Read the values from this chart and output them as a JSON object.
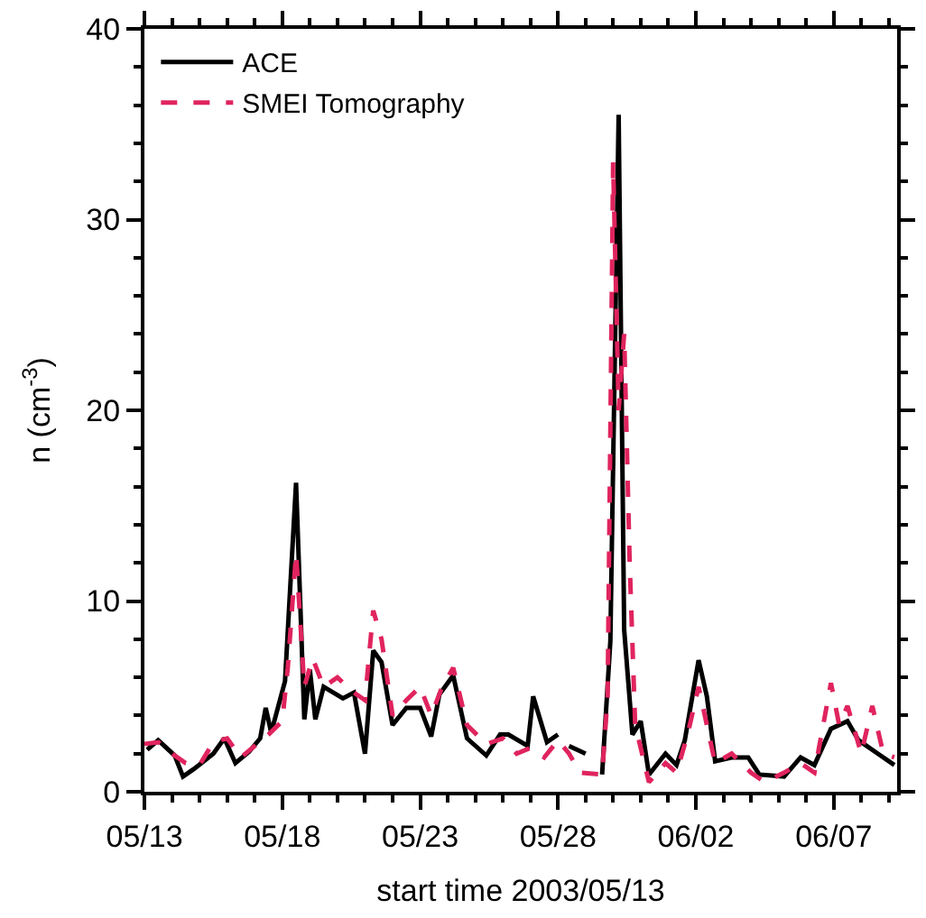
{
  "chart_data": {
    "type": "line",
    "xlabel": "start time 2003/05/13",
    "ylabel": "n (cm$^{-3}$)",
    "xlim": [
      "2003-05-13",
      "2003-06-09T07:12"
    ],
    "xticks": [
      {
        "value": "2003-05-13",
        "label": "05/13"
      },
      {
        "value": "2003-05-18",
        "label": "05/18"
      },
      {
        "value": "2003-05-23",
        "label": "05/23"
      },
      {
        "value": "2003-05-28",
        "label": "05/28"
      },
      {
        "value": "2003-06-02",
        "label": "06/02"
      },
      {
        "value": "2003-06-07",
        "label": "06/07"
      }
    ],
    "ylim": [
      0,
      40
    ],
    "yticks": [
      0,
      10,
      20,
      30,
      40
    ],
    "legend": "top left",
    "series": [
      {
        "name": "ACE",
        "color": "#000000",
        "line_style": "solid",
        "x": [
          "2003-05-13T02:24",
          "2003-05-13T12:00",
          "2003-05-14T02:24",
          "2003-05-14T09:36",
          "2003-05-14T19:12",
          "2003-05-15T12:00",
          "2003-05-15T21:36",
          "2003-05-16T07:12",
          "2003-05-16T19:12",
          "2003-05-17T04:48",
          "2003-05-17T09:36",
          "2003-05-17T14:24",
          "2003-05-18T02:24",
          "2003-05-18T12:00",
          "2003-05-18T19:12",
          "2003-05-19T00:00",
          "2003-05-19T04:48",
          "2003-05-19T12:00",
          "2003-05-20T04:48",
          "2003-05-20T14:24",
          "2003-05-21T00:00",
          "2003-05-21T07:12",
          "2003-05-21T14:24",
          "2003-05-22T00:00",
          "2003-05-22T12:00",
          "2003-05-23T00:00",
          "2003-05-23T09:36",
          "2003-05-23T16:48",
          "2003-05-24T04:48",
          "2003-05-24T16:48",
          "2003-05-25T09:36",
          "2003-05-25T21:36",
          "2003-05-26T04:48",
          "2003-05-26T21:36",
          "2003-05-27T02:24",
          "2003-05-27T14:24",
          "2003-05-28T00:00",
          "2003-05-28T04:48",
          "2003-05-28T09:36",
          "2003-05-29T00:00",
          "2003-05-29T07:12",
          "2003-05-29T14:24",
          "2003-05-29T21:36",
          "2003-05-30T04:48",
          "2003-05-30T09:36",
          "2003-05-30T16:48",
          "2003-05-31T00:00",
          "2003-05-31T07:12",
          "2003-05-31T21:36",
          "2003-06-01T07:12",
          "2003-06-01T14:24",
          "2003-06-02T02:24",
          "2003-06-02T09:36",
          "2003-06-02T16:48",
          "2003-06-03T07:12",
          "2003-06-03T21:36",
          "2003-06-04T07:12",
          "2003-06-05T04:48",
          "2003-06-05T19:12",
          "2003-06-06T07:12",
          "2003-06-06T21:36",
          "2003-06-07T12:00",
          "2003-06-07T21:36",
          "2003-06-08T14:24",
          "2003-06-09T04:48"
        ],
        "values": [
          2.2,
          2.7,
          1.9,
          0.8,
          1.2,
          2.0,
          2.8,
          1.5,
          2.1,
          2.8,
          4.4,
          3.1,
          5.8,
          16.2,
          3.8,
          6.4,
          3.8,
          5.5,
          4.9,
          5.2,
          2.0,
          7.4,
          6.8,
          3.5,
          4.4,
          4.4,
          2.9,
          5.1,
          6.1,
          2.8,
          1.9,
          3.0,
          3.0,
          2.4,
          5.0,
          2.6,
          3.0,
          null,
          2.4,
          2.0,
          null,
          0.9,
          7.9,
          35.5,
          8.5,
          3.0,
          3.7,
          0.9,
          2.0,
          1.4,
          2.7,
          6.9,
          5.0,
          1.6,
          1.8,
          1.8,
          0.9,
          0.8,
          1.8,
          1.4,
          3.3,
          3.7,
          2.7,
          2.0,
          1.4
        ]
      },
      {
        "name": "SMEI Tomography",
        "color": "#e0245e",
        "line_style": "dashed",
        "x": [
          "2003-05-13T00:00",
          "2003-05-13T12:00",
          "2003-05-14T00:00",
          "2003-05-14T12:00",
          "2003-05-15T00:00",
          "2003-05-15T12:00",
          "2003-05-16T00:00",
          "2003-05-16T12:00",
          "2003-05-17T00:00",
          "2003-05-17T12:00",
          "2003-05-18T00:00",
          "2003-05-18T04:48",
          "2003-05-18T12:00",
          "2003-05-18T19:12",
          "2003-05-19T02:24",
          "2003-05-19T12:00",
          "2003-05-20T00:00",
          "2003-05-20T12:00",
          "2003-05-21T00:00",
          "2003-05-21T07:12",
          "2003-05-21T14:24",
          "2003-05-22T00:00",
          "2003-05-22T12:00",
          "2003-05-23T00:00",
          "2003-05-23T09:36",
          "2003-05-23T19:12",
          "2003-05-24T04:48",
          "2003-05-24T16:48",
          "2003-05-25T09:36",
          "2003-05-26T00:00",
          "2003-05-26T12:00",
          "2003-05-27T00:00",
          "2003-05-27T12:00",
          "2003-05-28T00:00",
          "2003-05-28T09:36",
          "2003-05-28T19:12",
          "2003-05-29T14:24",
          "2003-05-29T19:12",
          "2003-05-30T00:00",
          "2003-05-30T04:48",
          "2003-05-30T09:36",
          "2003-05-30T14:24",
          "2003-05-30T19:12",
          "2003-05-31T07:12",
          "2003-05-31T21:36",
          "2003-06-01T07:12",
          "2003-06-01T16:48",
          "2003-06-02T02:24",
          "2003-06-02T09:36",
          "2003-06-02T16:48",
          "2003-06-03T07:12",
          "2003-06-04T00:00",
          "2003-06-04T12:00",
          "2003-06-05T04:48",
          "2003-06-05T19:12",
          "2003-06-06T07:12",
          "2003-06-06T21:36",
          "2003-06-07T04:48",
          "2003-06-07T12:00",
          "2003-06-08T00:00",
          "2003-06-08T09:36",
          "2003-06-08T19:12",
          "2003-06-09T04:48"
        ],
        "values": [
          2.5,
          2.6,
          2.0,
          1.5,
          1.4,
          2.6,
          2.8,
          1.8,
          2.4,
          3.0,
          3.7,
          6.5,
          12.5,
          5.5,
          7.0,
          5.5,
          6.0,
          5.3,
          4.8,
          9.5,
          8.0,
          4.0,
          4.8,
          5.5,
          4.0,
          5.5,
          6.5,
          3.5,
          2.5,
          2.8,
          2.0,
          2.3,
          1.8,
          2.7,
          2.0,
          1.0,
          0.9,
          5.0,
          33.0,
          20.0,
          24.0,
          12.0,
          3.5,
          0.5,
          1.5,
          1.0,
          3.0,
          5.5,
          3.5,
          1.5,
          2.0,
          1.0,
          0.5,
          1.0,
          1.5,
          1.0,
          5.7,
          3.5,
          4.5,
          2.0,
          4.5,
          2.0,
          1.8
        ]
      }
    ]
  }
}
